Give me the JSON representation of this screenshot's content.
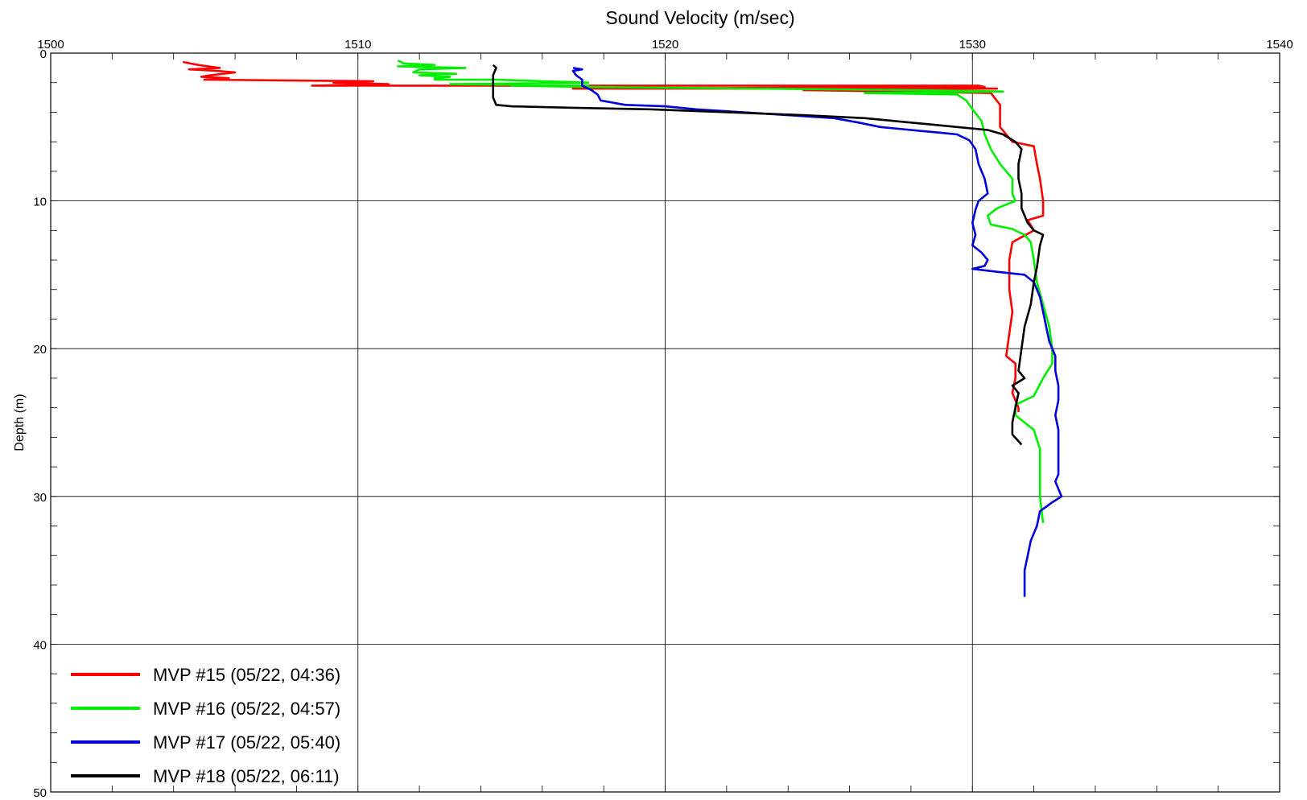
{
  "chart_data": {
    "type": "line",
    "xlabel": "Sound Velocity (m/sec)",
    "ylabel": "Depth (m)",
    "xlim": [
      1500,
      1540
    ],
    "ylim": [
      0,
      50
    ],
    "y_inverted": true,
    "x_axis_position": "top",
    "xticks": [
      1500,
      1510,
      1520,
      1530,
      1540
    ],
    "yticks": [
      0,
      10,
      20,
      30,
      40,
      50
    ],
    "grid": true,
    "legend_position": "bottom-left",
    "series": [
      {
        "name": "MVP #15 (05/22, 04:36)",
        "color": "#ff0000",
        "points": [
          [
            1504.3,
            0.6
          ],
          [
            1504.8,
            0.8
          ],
          [
            1505.5,
            1.0
          ],
          [
            1504.5,
            1.1
          ],
          [
            1505.4,
            1.2
          ],
          [
            1506.0,
            1.3
          ],
          [
            1505.2,
            1.5
          ],
          [
            1504.9,
            1.6
          ],
          [
            1505.8,
            1.7
          ],
          [
            1505.0,
            1.8
          ],
          [
            1510.5,
            1.9
          ],
          [
            1509.2,
            2.0
          ],
          [
            1511.0,
            2.1
          ],
          [
            1508.5,
            2.2
          ],
          [
            1513.0,
            2.2
          ],
          [
            1530.2,
            2.2
          ],
          [
            1530.4,
            2.3
          ],
          [
            1517.0,
            2.4
          ],
          [
            1530.8,
            2.4
          ],
          [
            1524.5,
            2.5
          ],
          [
            1527.5,
            2.6
          ],
          [
            1530.6,
            2.7
          ],
          [
            1530.9,
            3.5
          ],
          [
            1530.9,
            5.0
          ],
          [
            1531.3,
            6.0
          ],
          [
            1532.0,
            6.3
          ],
          [
            1532.1,
            7.5
          ],
          [
            1532.2,
            8.5
          ],
          [
            1532.3,
            10.0
          ],
          [
            1532.3,
            11.0
          ],
          [
            1531.8,
            11.3
          ],
          [
            1532.0,
            12.0
          ],
          [
            1531.3,
            12.8
          ],
          [
            1531.2,
            14.0
          ],
          [
            1531.2,
            16.0
          ],
          [
            1531.3,
            17.5
          ],
          [
            1531.2,
            19.0
          ],
          [
            1531.1,
            20.5
          ],
          [
            1531.4,
            21.0
          ],
          [
            1531.4,
            22.0
          ],
          [
            1531.3,
            23.0
          ],
          [
            1531.5,
            24.0
          ],
          [
            1531.5,
            24.3
          ]
        ]
      },
      {
        "name": "MVP #16 (05/22, 04:57)",
        "color": "#00ee00",
        "points": [
          [
            1511.3,
            0.5
          ],
          [
            1511.5,
            0.7
          ],
          [
            1512.5,
            0.8
          ],
          [
            1511.3,
            0.9
          ],
          [
            1513.5,
            1.0
          ],
          [
            1512.0,
            1.1
          ],
          [
            1511.8,
            1.3
          ],
          [
            1513.2,
            1.4
          ],
          [
            1512.0,
            1.5
          ],
          [
            1513.0,
            1.6
          ],
          [
            1512.5,
            1.7
          ],
          [
            1512.5,
            1.8
          ],
          [
            1514.5,
            1.8
          ],
          [
            1516.0,
            1.9
          ],
          [
            1517.5,
            2.0
          ],
          [
            1513.0,
            2.1
          ],
          [
            1517.5,
            2.2
          ],
          [
            1515.0,
            2.2
          ],
          [
            1517.8,
            2.3
          ],
          [
            1523.0,
            2.4
          ],
          [
            1528.0,
            2.5
          ],
          [
            1531.0,
            2.6
          ],
          [
            1526.5,
            2.7
          ],
          [
            1529.5,
            2.8
          ],
          [
            1529.8,
            3.2
          ],
          [
            1530.0,
            3.8
          ],
          [
            1530.3,
            4.6
          ],
          [
            1530.4,
            5.5
          ],
          [
            1530.6,
            6.5
          ],
          [
            1530.9,
            7.5
          ],
          [
            1531.3,
            8.5
          ],
          [
            1531.3,
            9.5
          ],
          [
            1531.4,
            10.0
          ],
          [
            1530.8,
            10.5
          ],
          [
            1530.5,
            11.0
          ],
          [
            1530.6,
            11.6
          ],
          [
            1531.3,
            11.9
          ],
          [
            1531.7,
            12.3
          ],
          [
            1531.9,
            12.8
          ],
          [
            1532.0,
            14.0
          ],
          [
            1532.1,
            15.5
          ],
          [
            1532.3,
            17.0
          ],
          [
            1532.5,
            18.5
          ],
          [
            1532.6,
            20.0
          ],
          [
            1532.6,
            21.0
          ],
          [
            1532.3,
            22.0
          ],
          [
            1532.0,
            23.2
          ],
          [
            1531.7,
            23.5
          ],
          [
            1531.4,
            23.8
          ],
          [
            1531.4,
            24.5
          ],
          [
            1532.0,
            25.5
          ],
          [
            1532.2,
            26.8
          ],
          [
            1532.2,
            28.0
          ],
          [
            1532.2,
            30.0
          ],
          [
            1532.3,
            31.8
          ]
        ]
      },
      {
        "name": "MVP #17 (05/22, 05:40)",
        "color": "#0000dd",
        "points": [
          [
            1517.0,
            1.0
          ],
          [
            1517.3,
            1.1
          ],
          [
            1517.0,
            1.2
          ],
          [
            1517.1,
            1.5
          ],
          [
            1517.3,
            1.8
          ],
          [
            1517.3,
            2.2
          ],
          [
            1517.6,
            2.5
          ],
          [
            1517.8,
            2.8
          ],
          [
            1517.9,
            3.2
          ],
          [
            1518.7,
            3.5
          ],
          [
            1520.0,
            3.6
          ],
          [
            1521.0,
            3.8
          ],
          [
            1522.5,
            4.0
          ],
          [
            1524.0,
            4.2
          ],
          [
            1525.5,
            4.4
          ],
          [
            1526.3,
            4.7
          ],
          [
            1527.0,
            5.0
          ],
          [
            1528.0,
            5.2
          ],
          [
            1529.0,
            5.4
          ],
          [
            1529.5,
            5.5
          ],
          [
            1529.9,
            5.9
          ],
          [
            1530.1,
            6.5
          ],
          [
            1530.2,
            7.5
          ],
          [
            1530.4,
            8.5
          ],
          [
            1530.5,
            9.5
          ],
          [
            1530.2,
            10.0
          ],
          [
            1530.1,
            10.6
          ],
          [
            1530.0,
            11.5
          ],
          [
            1530.1,
            12.3
          ],
          [
            1530.0,
            13.0
          ],
          [
            1530.3,
            13.5
          ],
          [
            1530.5,
            14.0
          ],
          [
            1530.4,
            14.4
          ],
          [
            1530.0,
            14.6
          ],
          [
            1530.8,
            14.8
          ],
          [
            1531.7,
            15.0
          ],
          [
            1532.0,
            15.5
          ],
          [
            1532.2,
            16.5
          ],
          [
            1532.3,
            17.5
          ],
          [
            1532.4,
            18.5
          ],
          [
            1532.5,
            19.5
          ],
          [
            1532.7,
            20.5
          ],
          [
            1532.7,
            21.5
          ],
          [
            1532.8,
            22.5
          ],
          [
            1532.8,
            23.5
          ],
          [
            1532.7,
            24.5
          ],
          [
            1532.8,
            25.5
          ],
          [
            1532.8,
            27.0
          ],
          [
            1532.8,
            28.5
          ],
          [
            1532.7,
            29.0
          ],
          [
            1532.9,
            30.0
          ],
          [
            1532.6,
            30.4
          ],
          [
            1532.2,
            31.0
          ],
          [
            1532.1,
            32.0
          ],
          [
            1531.9,
            33.0
          ],
          [
            1531.8,
            34.0
          ],
          [
            1531.7,
            35.0
          ],
          [
            1531.7,
            36.0
          ],
          [
            1531.7,
            36.8
          ]
        ]
      },
      {
        "name": "MVP #18 (05/22, 06:11)",
        "color": "#000000",
        "points": [
          [
            1514.4,
            0.8
          ],
          [
            1514.5,
            1.0
          ],
          [
            1514.4,
            1.5
          ],
          [
            1514.4,
            2.0
          ],
          [
            1514.4,
            2.5
          ],
          [
            1514.4,
            3.0
          ],
          [
            1514.5,
            3.5
          ],
          [
            1515.0,
            3.6
          ],
          [
            1517.0,
            3.7
          ],
          [
            1519.5,
            3.8
          ],
          [
            1522.0,
            4.0
          ],
          [
            1524.5,
            4.2
          ],
          [
            1526.5,
            4.4
          ],
          [
            1528.0,
            4.7
          ],
          [
            1529.5,
            5.0
          ],
          [
            1530.5,
            5.2
          ],
          [
            1531.0,
            5.5
          ],
          [
            1531.4,
            6.0
          ],
          [
            1531.6,
            6.5
          ],
          [
            1531.5,
            7.5
          ],
          [
            1531.5,
            8.5
          ],
          [
            1531.6,
            9.5
          ],
          [
            1531.6,
            10.5
          ],
          [
            1531.8,
            11.5
          ],
          [
            1532.0,
            12.0
          ],
          [
            1532.3,
            12.3
          ],
          [
            1532.2,
            13.0
          ],
          [
            1532.1,
            14.5
          ],
          [
            1532.0,
            15.5
          ],
          [
            1531.9,
            17.0
          ],
          [
            1531.7,
            18.5
          ],
          [
            1531.6,
            20.0
          ],
          [
            1531.5,
            21.5
          ],
          [
            1531.7,
            22.0
          ],
          [
            1531.3,
            22.5
          ],
          [
            1531.5,
            23.0
          ],
          [
            1531.4,
            24.0
          ],
          [
            1531.3,
            25.0
          ],
          [
            1531.3,
            25.8
          ],
          [
            1531.6,
            26.5
          ]
        ]
      }
    ]
  }
}
